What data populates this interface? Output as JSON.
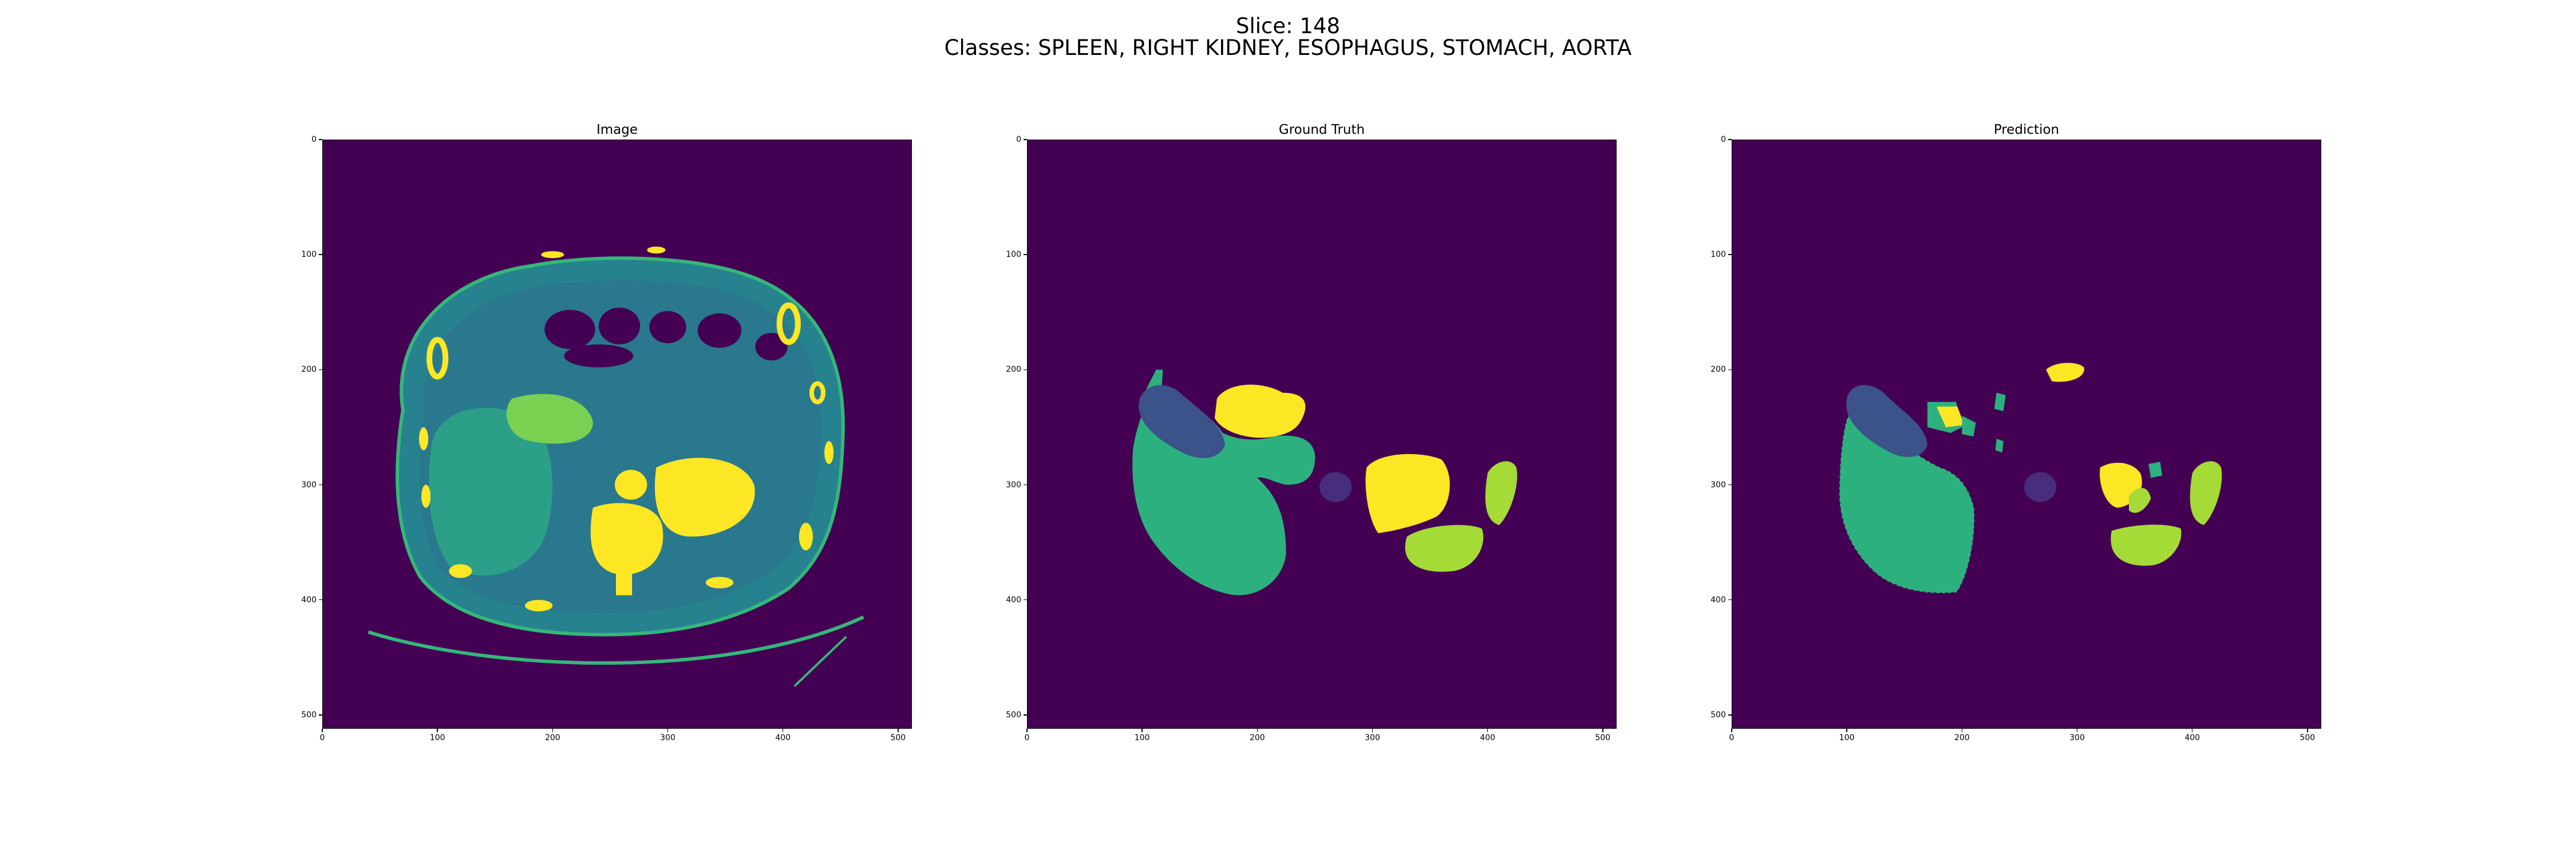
{
  "figure": {
    "title_line1": "Slice: 148",
    "title_line2": "Classes: SPLEEN, RIGHT KIDNEY, ESOPHAGUS, STOMACH, AORTA"
  },
  "panels": [
    {
      "id": "image",
      "title": "Image"
    },
    {
      "id": "ground-truth",
      "title": "Ground Truth"
    },
    {
      "id": "prediction",
      "title": "Prediction"
    }
  ],
  "axes": {
    "x_ticks": [
      "0",
      "100",
      "200",
      "300",
      "400",
      "500"
    ],
    "y_ticks": [
      "0",
      "100",
      "200",
      "300",
      "400",
      "500"
    ]
  },
  "colors": {
    "background": "#440154",
    "spleen": "#3b528b",
    "right_kidney": "#2cb17e",
    "esophagus": "#fde725",
    "stomach": "#a5db36",
    "aorta": "#472d7b",
    "ct_soft_tissue": "#21918c",
    "ct_bone": "#fde725"
  }
}
